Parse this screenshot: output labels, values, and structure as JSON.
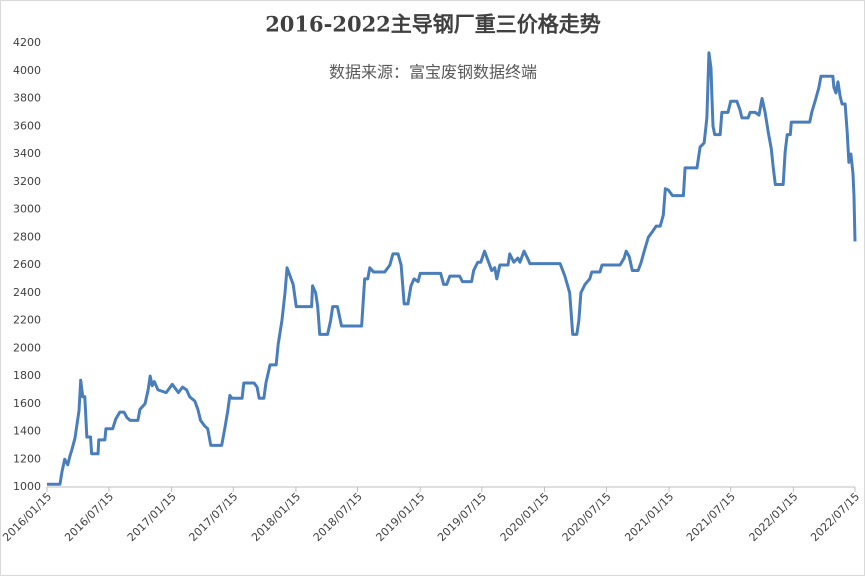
{
  "chart_data": {
    "type": "line",
    "title": "2016-2022主导钢厂重三价格走势",
    "subtitle": "数据来源：富宝废钢数据终端",
    "x": [
      "2016/01/15",
      "2016/02/22",
      "2016/02/28",
      "2016/03/07",
      "2016/03/16",
      "2016/03/22",
      "2016/03/27",
      "2016/04/06",
      "2016/04/12",
      "2016/04/18",
      "2016/04/23",
      "2016/04/29",
      "2016/05/05",
      "2016/05/11",
      "2016/05/22",
      "2016/05/25",
      "2016/06/13",
      "2016/06/15",
      "2016/07/03",
      "2016/07/06",
      "2016/07/26",
      "2016/08/04",
      "2016/08/16",
      "2016/08/28",
      "2016/09/06",
      "2016/09/15",
      "2016/10/08",
      "2016/10/14",
      "2016/10/29",
      "2016/11/07",
      "2016/11/13",
      "2016/11/19",
      "2016/11/25",
      "2016/12/06",
      "2016/12/18",
      "2016/12/30",
      "2017/01/17",
      "2017/02/04",
      "2017/02/16",
      "2017/02/28",
      "2017/03/09",
      "2017/03/24",
      "2017/04/02",
      "2017/04/10",
      "2017/04/22",
      "2017/05/01",
      "2017/05/10",
      "2017/06/11",
      "2017/06/20",
      "2017/06/29",
      "2017/07/05",
      "2017/07/11",
      "2017/08/10",
      "2017/08/15",
      "2017/09/14",
      "2017/09/23",
      "2017/09/29",
      "2017/10/13",
      "2017/10/19",
      "2017/10/31",
      "2017/11/18",
      "2017/11/24",
      "2017/12/05",
      "2017/12/14",
      "2017/12/20",
      "2017/12/29",
      "2018/01/07",
      "2018/01/16",
      "2018/03/02",
      "2018/03/05",
      "2018/03/14",
      "2018/03/20",
      "2018/03/26",
      "2018/04/18",
      "2018/04/27",
      "2018/05/03",
      "2018/05/17",
      "2018/05/29",
      "2018/07/27",
      "2018/08/05",
      "2018/08/14",
      "2018/08/20",
      "2018/08/31",
      "2018/10/03",
      "2018/10/18",
      "2018/10/27",
      "2018/11/11",
      "2018/11/20",
      "2018/11/29",
      "2018/12/10",
      "2018/12/19",
      "2018/12/28",
      "2019/01/09",
      "2019/01/15",
      "2019/03/16",
      "2019/03/25",
      "2019/04/03",
      "2019/04/12",
      "2019/05/11",
      "2019/05/19",
      "2019/06/15",
      "2019/06/21",
      "2019/07/03",
      "2019/07/12",
      "2019/07/23",
      "2019/08/01",
      "2019/08/13",
      "2019/08/22",
      "2019/08/28",
      "2019/09/06",
      "2019/09/30",
      "2019/10/05",
      "2019/10/17",
      "2019/10/29",
      "2019/11/04",
      "2019/11/16",
      "2019/11/28",
      "2019/12/03",
      "2020/03/01",
      "2020/03/15",
      "2020/03/29",
      "2020/04/07",
      "2020/04/19",
      "2020/04/25",
      "2020/05/01",
      "2020/05/13",
      "2020/05/27",
      "2020/06/02",
      "2020/06/26",
      "2020/07/02",
      "2020/08/24",
      "2020/09/05",
      "2020/09/11",
      "2020/09/20",
      "2020/09/29",
      "2020/10/16",
      "2020/10/25",
      "2020/11/03",
      "2020/11/15",
      "2020/11/27",
      "2020/12/08",
      "2020/12/20",
      "2020/12/29",
      "2021/01/04",
      "2021/01/13",
      "2021/01/25",
      "2021/02/26",
      "2021/03/03",
      "2021/04/07",
      "2021/04/16",
      "2021/04/28",
      "2021/05/06",
      "2021/05/12",
      "2021/05/18",
      "2021/05/21",
      "2021/05/24",
      "2021/05/29",
      "2021/06/14",
      "2021/06/19",
      "2021/07/07",
      "2021/07/15",
      "2021/08/02",
      "2021/08/11",
      "2021/08/17",
      "2021/09/04",
      "2021/09/10",
      "2021/09/25",
      "2021/10/06",
      "2021/10/15",
      "2021/10/24",
      "2021/11/02",
      "2021/11/11",
      "2021/11/17",
      "2021/11/23",
      "2021/12/16",
      "2021/12/22",
      "2021/12/28",
      "2022/01/06",
      "2022/01/09",
      "2022/03/04",
      "2022/03/10",
      "2022/03/22",
      "2022/03/31",
      "2022/04/06",
      "2022/05/11",
      "2022/05/14",
      "2022/05/20",
      "2022/05/26",
      "2022/06/01",
      "2022/06/07",
      "2022/06/16",
      "2022/06/22",
      "2022/06/27",
      "2022/07/03",
      "2022/07/09",
      "2022/07/12",
      "2022/07/15"
    ],
    "series": [
      {
        "color": "#4a7ebb",
        "values": [
          1020,
          1020,
          1110,
          1200,
          1160,
          1220,
          1260,
          1350,
          1450,
          1550,
          1770,
          1650,
          1650,
          1360,
          1360,
          1240,
          1240,
          1340,
          1340,
          1420,
          1420,
          1490,
          1540,
          1540,
          1500,
          1480,
          1480,
          1560,
          1600,
          1700,
          1800,
          1730,
          1760,
          1700,
          1690,
          1680,
          1740,
          1680,
          1720,
          1700,
          1650,
          1620,
          1560,
          1480,
          1440,
          1420,
          1300,
          1300,
          1420,
          1550,
          1660,
          1640,
          1640,
          1750,
          1750,
          1720,
          1640,
          1640,
          1750,
          1880,
          1880,
          2030,
          2200,
          2400,
          2580,
          2520,
          2460,
          2300,
          2300,
          2450,
          2400,
          2300,
          2100,
          2100,
          2200,
          2300,
          2300,
          2160,
          2160,
          2500,
          2500,
          2580,
          2550,
          2550,
          2600,
          2680,
          2680,
          2600,
          2320,
          2320,
          2450,
          2500,
          2480,
          2540,
          2540,
          2460,
          2460,
          2520,
          2520,
          2480,
          2480,
          2560,
          2620,
          2620,
          2700,
          2640,
          2560,
          2580,
          2500,
          2600,
          2600,
          2680,
          2620,
          2650,
          2620,
          2700,
          2640,
          2610,
          2610,
          2520,
          2400,
          2100,
          2100,
          2200,
          2400,
          2460,
          2500,
          2550,
          2550,
          2600,
          2600,
          2650,
          2700,
          2660,
          2560,
          2560,
          2620,
          2700,
          2800,
          2840,
          2880,
          2880,
          2960,
          3150,
          3140,
          3100,
          3100,
          3300,
          3300,
          3450,
          3480,
          3660,
          4130,
          4020,
          3800,
          3600,
          3540,
          3540,
          3700,
          3700,
          3780,
          3780,
          3720,
          3660,
          3660,
          3700,
          3700,
          3680,
          3800,
          3700,
          3560,
          3440,
          3300,
          3180,
          3180,
          3420,
          3540,
          3540,
          3630,
          3630,
          3700,
          3800,
          3880,
          3960,
          3960,
          3880,
          3840,
          3920,
          3820,
          3760,
          3760,
          3560,
          3340,
          3400,
          3260,
          3100,
          2770
        ]
      }
    ],
    "xlim": [
      "2016/01/15",
      "2022/07/15"
    ],
    "xticks": [
      "2016/01/15",
      "2016/07/15",
      "2017/01/15",
      "2017/07/15",
      "2018/01/15",
      "2018/07/15",
      "2019/01/15",
      "2019/07/15",
      "2020/01/15",
      "2020/07/15",
      "2021/01/15",
      "2021/07/15",
      "2022/01/15",
      "2022/07/15"
    ],
    "ylim": [
      1000,
      4200
    ],
    "yticks": [
      1000,
      1200,
      1400,
      1600,
      1800,
      2000,
      2200,
      2400,
      2600,
      2800,
      3000,
      3200,
      3400,
      3600,
      3800,
      4000,
      4200
    ],
    "grid": false
  }
}
